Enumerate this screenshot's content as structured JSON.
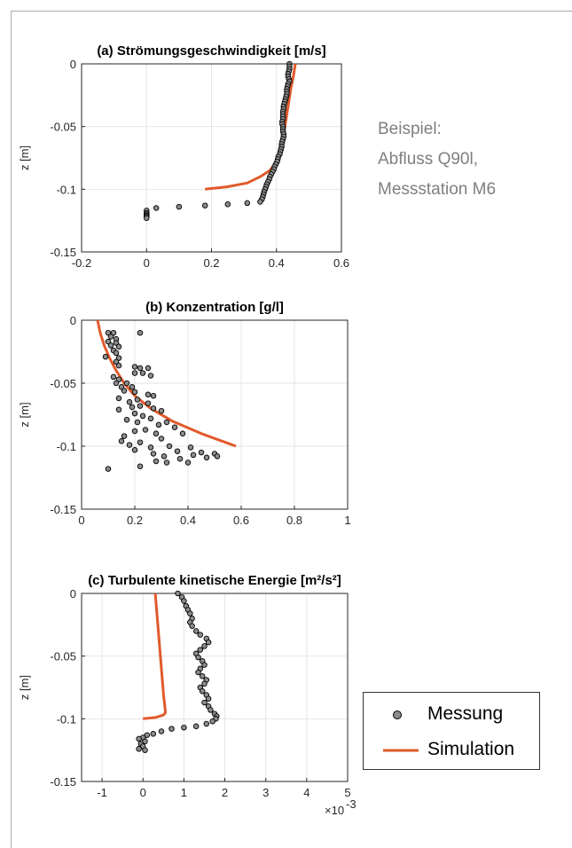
{
  "annotation": {
    "lines": [
      "Beispiel:",
      "Abfluss Q90l,",
      "Messstation M6"
    ]
  },
  "legend": {
    "items": [
      {
        "label": "Messung",
        "kind": "marker"
      },
      {
        "label": "Simulation",
        "kind": "line"
      }
    ]
  },
  "colors": {
    "simulation": "#e15a2b",
    "marker_fill": "#8c8c8c",
    "grid": "#e6e6e6"
  },
  "chart_data": [
    {
      "type": "scatter",
      "title": "(a) Strömungsgeschwindigkeit [m/s]",
      "xlabel": "",
      "ylabel": "z [m]",
      "xlim": [
        -0.2,
        0.6
      ],
      "ylim": [
        -0.15,
        0
      ],
      "xticks": [
        "-0.2",
        "0",
        "0.2",
        "0.4",
        "0.6"
      ],
      "yticks": [
        "0",
        "-0.05",
        "-0.1",
        "-0.15"
      ],
      "grid": true,
      "series": [
        {
          "kind": "marker",
          "points": [
            [
              0.44,
              0
            ],
            [
              0.44,
              -0.002
            ],
            [
              0.44,
              -0.004
            ],
            [
              0.438,
              -0.006
            ],
            [
              0.436,
              -0.008
            ],
            [
              0.436,
              -0.01
            ],
            [
              0.438,
              -0.012
            ],
            [
              0.44,
              -0.014
            ],
            [
              0.436,
              -0.016
            ],
            [
              0.434,
              -0.018
            ],
            [
              0.432,
              -0.02
            ],
            [
              0.432,
              -0.022
            ],
            [
              0.432,
              -0.024
            ],
            [
              0.43,
              -0.026
            ],
            [
              0.428,
              -0.028
            ],
            [
              0.426,
              -0.03
            ],
            [
              0.424,
              -0.032
            ],
            [
              0.422,
              -0.034
            ],
            [
              0.422,
              -0.036
            ],
            [
              0.42,
              -0.038
            ],
            [
              0.42,
              -0.04
            ],
            [
              0.42,
              -0.042
            ],
            [
              0.42,
              -0.044
            ],
            [
              0.418,
              -0.046
            ],
            [
              0.418,
              -0.048
            ],
            [
              0.42,
              -0.05
            ],
            [
              0.42,
              -0.052
            ],
            [
              0.42,
              -0.054
            ],
            [
              0.422,
              -0.056
            ],
            [
              0.422,
              -0.058
            ],
            [
              0.42,
              -0.06
            ],
            [
              0.418,
              -0.062
            ],
            [
              0.416,
              -0.064
            ],
            [
              0.416,
              -0.066
            ],
            [
              0.414,
              -0.068
            ],
            [
              0.412,
              -0.07
            ],
            [
              0.41,
              -0.072
            ],
            [
              0.406,
              -0.074
            ],
            [
              0.404,
              -0.076
            ],
            [
              0.402,
              -0.078
            ],
            [
              0.398,
              -0.08
            ],
            [
              0.394,
              -0.082
            ],
            [
              0.392,
              -0.084
            ],
            [
              0.388,
              -0.086
            ],
            [
              0.384,
              -0.088
            ],
            [
              0.38,
              -0.09
            ],
            [
              0.378,
              -0.092
            ],
            [
              0.374,
              -0.094
            ],
            [
              0.37,
              -0.096
            ],
            [
              0.368,
              -0.098
            ],
            [
              0.365,
              -0.1
            ],
            [
              0.362,
              -0.102
            ],
            [
              0.36,
              -0.104
            ],
            [
              0.358,
              -0.106
            ],
            [
              0.355,
              -0.108
            ],
            [
              0.35,
              -0.11
            ],
            [
              0.31,
              -0.111
            ],
            [
              0.25,
              -0.112
            ],
            [
              0.18,
              -0.113
            ],
            [
              0.1,
              -0.114
            ],
            [
              0.03,
              -0.115
            ],
            [
              0.0,
              -0.117
            ],
            [
              0.0,
              -0.119
            ],
            [
              0.0,
              -0.12
            ],
            [
              0.0,
              -0.121
            ],
            [
              0.0,
              -0.122
            ],
            [
              0.0,
              -0.123
            ]
          ]
        },
        {
          "kind": "line",
          "points": [
            [
              0.18,
              -0.1
            ],
            [
              0.25,
              -0.098
            ],
            [
              0.31,
              -0.095
            ],
            [
              0.35,
              -0.09
            ],
            [
              0.38,
              -0.085
            ],
            [
              0.395,
              -0.08
            ],
            [
              0.405,
              -0.075
            ],
            [
              0.412,
              -0.07
            ],
            [
              0.42,
              -0.06
            ],
            [
              0.426,
              -0.05
            ],
            [
              0.432,
              -0.04
            ],
            [
              0.438,
              -0.03
            ],
            [
              0.444,
              -0.02
            ],
            [
              0.452,
              -0.01
            ],
            [
              0.458,
              0
            ]
          ]
        }
      ]
    },
    {
      "type": "scatter",
      "title": "(b) Konzentration [g/l]",
      "xlabel": "",
      "ylabel": "z [m]",
      "xlim": [
        0,
        1
      ],
      "ylim": [
        -0.15,
        0
      ],
      "xticks": [
        "0",
        "0.2",
        "0.4",
        "0.6",
        "0.8",
        "1"
      ],
      "yticks": [
        "0",
        "-0.05",
        "-0.1",
        "-0.15"
      ],
      "grid": true,
      "series": [
        {
          "kind": "marker",
          "points": [
            [
              0.1,
              -0.01
            ],
            [
              0.12,
              -0.01
            ],
            [
              0.22,
              -0.01
            ],
            [
              0.11,
              -0.013
            ],
            [
              0.13,
              -0.015
            ],
            [
              0.1,
              -0.017
            ],
            [
              0.13,
              -0.018
            ],
            [
              0.11,
              -0.02
            ],
            [
              0.14,
              -0.021
            ],
            [
              0.12,
              -0.024
            ],
            [
              0.13,
              -0.026
            ],
            [
              0.09,
              -0.029
            ],
            [
              0.14,
              -0.03
            ],
            [
              0.13,
              -0.033
            ],
            [
              0.14,
              -0.036
            ],
            [
              0.2,
              -0.037
            ],
            [
              0.22,
              -0.038
            ],
            [
              0.25,
              -0.038
            ],
            [
              0.2,
              -0.042
            ],
            [
              0.23,
              -0.042
            ],
            [
              0.26,
              -0.044
            ],
            [
              0.12,
              -0.045
            ],
            [
              0.14,
              -0.047
            ],
            [
              0.13,
              -0.05
            ],
            [
              0.17,
              -0.05
            ],
            [
              0.19,
              -0.053
            ],
            [
              0.15,
              -0.053
            ],
            [
              0.16,
              -0.056
            ],
            [
              0.2,
              -0.057
            ],
            [
              0.25,
              -0.059
            ],
            [
              0.27,
              -0.06
            ],
            [
              0.14,
              -0.062
            ],
            [
              0.21,
              -0.063
            ],
            [
              0.18,
              -0.065
            ],
            [
              0.25,
              -0.066
            ],
            [
              0.22,
              -0.068
            ],
            [
              0.19,
              -0.069
            ],
            [
              0.27,
              -0.07
            ],
            [
              0.14,
              -0.071
            ],
            [
              0.3,
              -0.072
            ],
            [
              0.2,
              -0.074
            ],
            [
              0.23,
              -0.076
            ],
            [
              0.26,
              -0.078
            ],
            [
              0.17,
              -0.079
            ],
            [
              0.21,
              -0.081
            ],
            [
              0.32,
              -0.081
            ],
            [
              0.29,
              -0.083
            ],
            [
              0.35,
              -0.085
            ],
            [
              0.24,
              -0.087
            ],
            [
              0.2,
              -0.088
            ],
            [
              0.28,
              -0.09
            ],
            [
              0.38,
              -0.09
            ],
            [
              0.16,
              -0.092
            ],
            [
              0.3,
              -0.094
            ],
            [
              0.15,
              -0.096
            ],
            [
              0.22,
              -0.097
            ],
            [
              0.18,
              -0.099
            ],
            [
              0.33,
              -0.1
            ],
            [
              0.26,
              -0.101
            ],
            [
              0.41,
              -0.101
            ],
            [
              0.2,
              -0.103
            ],
            [
              0.36,
              -0.104
            ],
            [
              0.45,
              -0.105
            ],
            [
              0.27,
              -0.106
            ],
            [
              0.5,
              -0.106
            ],
            [
              0.42,
              -0.107
            ],
            [
              0.31,
              -0.108
            ],
            [
              0.51,
              -0.108
            ],
            [
              0.47,
              -0.109
            ],
            [
              0.37,
              -0.11
            ],
            [
              0.28,
              -0.112
            ],
            [
              0.32,
              -0.113
            ],
            [
              0.4,
              -0.113
            ],
            [
              0.22,
              -0.116
            ],
            [
              0.1,
              -0.118
            ]
          ]
        },
        {
          "kind": "line",
          "points": [
            [
              0.06,
              0
            ],
            [
              0.07,
              -0.01
            ],
            [
              0.085,
              -0.02
            ],
            [
              0.105,
              -0.03
            ],
            [
              0.13,
              -0.04
            ],
            [
              0.16,
              -0.05
            ],
            [
              0.2,
              -0.06
            ],
            [
              0.26,
              -0.07
            ],
            [
              0.34,
              -0.08
            ],
            [
              0.45,
              -0.09
            ],
            [
              0.58,
              -0.1
            ]
          ]
        }
      ]
    },
    {
      "type": "scatter",
      "title": "(c) Turbulente kinetische Energie [m²/s²]",
      "xlabel": "",
      "ylabel": "z [m]",
      "xlim": [
        -1.5,
        5
      ],
      "ylim": [
        -0.15,
        0
      ],
      "xticks": [
        "-1",
        "0",
        "1",
        "2",
        "3",
        "4",
        "5"
      ],
      "yticks": [
        "0",
        "-0.05",
        "-0.1",
        "-0.15"
      ],
      "x_multiplier": "×10",
      "x_multiplier_exp": "-3",
      "grid": true,
      "series": [
        {
          "kind": "marker",
          "points": [
            [
              0.85,
              0
            ],
            [
              0.95,
              -0.003
            ],
            [
              1.0,
              -0.006
            ],
            [
              1.05,
              -0.01
            ],
            [
              1.1,
              -0.013
            ],
            [
              1.15,
              -0.016
            ],
            [
              1.2,
              -0.02
            ],
            [
              1.15,
              -0.023
            ],
            [
              1.2,
              -0.026
            ],
            [
              1.3,
              -0.03
            ],
            [
              1.4,
              -0.033
            ],
            [
              1.55,
              -0.036
            ],
            [
              1.6,
              -0.039
            ],
            [
              1.5,
              -0.042
            ],
            [
              1.4,
              -0.045
            ],
            [
              1.3,
              -0.048
            ],
            [
              1.35,
              -0.051
            ],
            [
              1.45,
              -0.054
            ],
            [
              1.5,
              -0.057
            ],
            [
              1.4,
              -0.06
            ],
            [
              1.35,
              -0.063
            ],
            [
              1.45,
              -0.066
            ],
            [
              1.55,
              -0.069
            ],
            [
              1.5,
              -0.072
            ],
            [
              1.4,
              -0.075
            ],
            [
              1.45,
              -0.078
            ],
            [
              1.55,
              -0.081
            ],
            [
              1.6,
              -0.084
            ],
            [
              1.5,
              -0.087
            ],
            [
              1.6,
              -0.09
            ],
            [
              1.65,
              -0.093
            ],
            [
              1.75,
              -0.096
            ],
            [
              1.8,
              -0.098
            ],
            [
              1.78,
              -0.1
            ],
            [
              1.7,
              -0.102
            ],
            [
              1.55,
              -0.104
            ],
            [
              1.3,
              -0.106
            ],
            [
              1.0,
              -0.107
            ],
            [
              0.7,
              -0.108
            ],
            [
              0.45,
              -0.11
            ],
            [
              0.25,
              -0.112
            ],
            [
              0.1,
              -0.113
            ],
            [
              0.0,
              -0.115
            ],
            [
              -0.1,
              -0.116
            ],
            [
              0.05,
              -0.118
            ],
            [
              -0.05,
              -0.12
            ],
            [
              0.0,
              -0.122
            ],
            [
              -0.1,
              -0.124
            ],
            [
              0.05,
              -0.125
            ]
          ]
        },
        {
          "kind": "line",
          "points": [
            [
              0.3,
              0
            ],
            [
              0.35,
              -0.02
            ],
            [
              0.4,
              -0.04
            ],
            [
              0.45,
              -0.06
            ],
            [
              0.5,
              -0.08
            ],
            [
              0.55,
              -0.095
            ],
            [
              0.5,
              -0.097
            ],
            [
              0.3,
              -0.099
            ],
            [
              0.0,
              -0.1
            ]
          ]
        }
      ]
    }
  ]
}
